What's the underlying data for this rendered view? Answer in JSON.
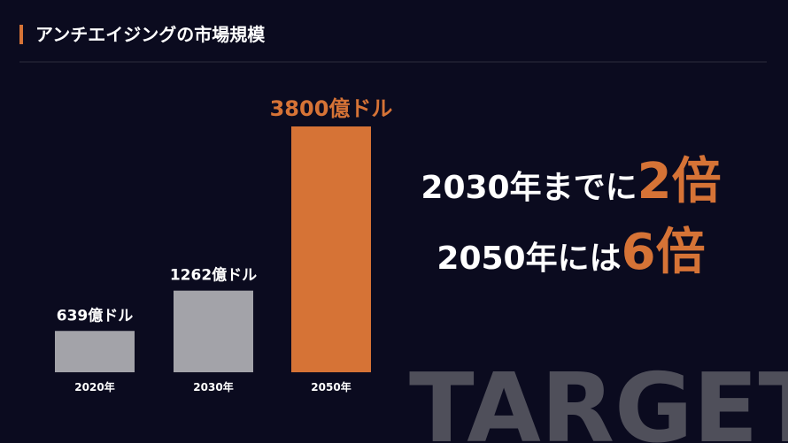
{
  "chart_data": {
    "type": "bar",
    "title": "アンチエイジングの市場規模",
    "categories": [
      "2020年",
      "2030年",
      "2050年"
    ],
    "values": [
      639,
      1262,
      3800
    ],
    "value_labels": [
      "639億ドル",
      "1262億ドル",
      "3800億ドル"
    ],
    "colors": [
      "#a3a3a9",
      "#a3a3a9",
      "#d67336"
    ],
    "label_colors": [
      "#ffffff",
      "#ffffff",
      "#d67336"
    ]
  },
  "annotations": [
    {
      "text": "2030年までに",
      "highlight": "2倍"
    },
    {
      "text": "2050年には",
      "highlight": "6倍"
    }
  ],
  "watermark": "TARGET"
}
